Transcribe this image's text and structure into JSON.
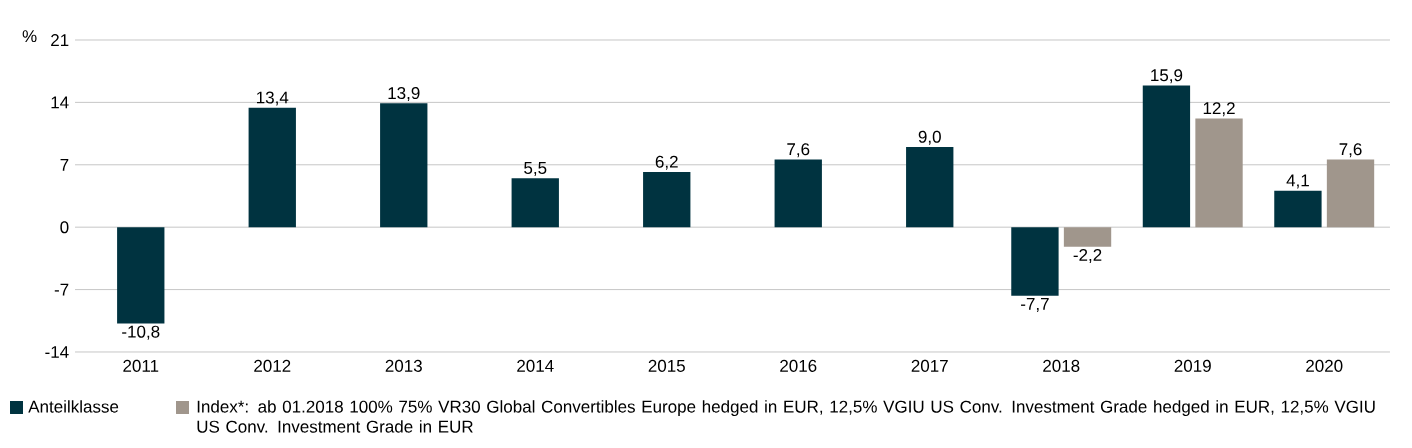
{
  "chart_data": {
    "type": "bar",
    "ylabel": "%",
    "categories": [
      "2011",
      "2012",
      "2013",
      "2014",
      "2015",
      "2016",
      "2017",
      "2018",
      "2019",
      "2020"
    ],
    "series": [
      {
        "name": "Anteilklasse",
        "color": "#003340",
        "values": [
          -10.8,
          13.4,
          13.9,
          5.5,
          6.2,
          7.6,
          9.0,
          -7.7,
          15.9,
          4.1
        ],
        "value_labels": [
          "-10,8",
          "13,4",
          "13,9",
          "5,5",
          "6,2",
          "7,6",
          "9,0",
          "-7,7",
          "15,9",
          "4,1"
        ]
      },
      {
        "name": "Index*: ab 01.2018 100% 75% VR30 Global Convertibles Europe hedged in EUR, 12,5% VGIU US Conv. Investment Grade hedged in EUR, 12,5% VGIU US Conv. Investment Grade in EUR",
        "color": "#a0968c",
        "values": [
          null,
          null,
          null,
          null,
          null,
          null,
          null,
          -2.2,
          12.2,
          7.6
        ],
        "value_labels": [
          null,
          null,
          null,
          null,
          null,
          null,
          null,
          "-2,2",
          "12,2",
          "7,6"
        ]
      }
    ],
    "ylim": [
      -14,
      21
    ],
    "yticks": [
      -14,
      -7,
      0,
      7,
      14,
      21
    ],
    "grid": "y",
    "legend": "bottom"
  }
}
